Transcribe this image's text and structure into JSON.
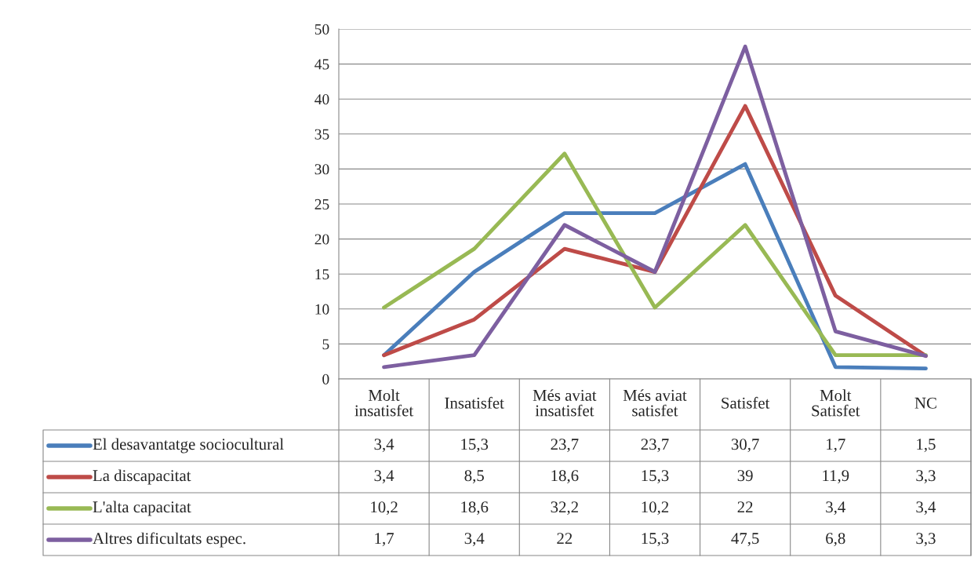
{
  "chart_data": {
    "type": "line",
    "categories": [
      "Molt insatisfet",
      "Insatisfet",
      "Més aviat insatisfet",
      "Més aviat satisfet",
      "Satisfet",
      "Molt Satisfet",
      "NC"
    ],
    "series": [
      {
        "name": "El desavantatge sociocultural",
        "color": "#4a7ebb",
        "values": [
          3.4,
          15.3,
          23.7,
          23.7,
          30.7,
          1.7,
          1.5
        ],
        "value_labels": [
          "3,4",
          "15,3",
          "23,7",
          "23,7",
          "30,7",
          "1,7",
          "1,5"
        ]
      },
      {
        "name": "La discapacitat",
        "color": "#be4b48",
        "values": [
          3.4,
          8.5,
          18.6,
          15.3,
          39,
          11.9,
          3.3
        ],
        "value_labels": [
          "3,4",
          "8,5",
          "18,6",
          "15,3",
          "39",
          "11,9",
          "3,3"
        ]
      },
      {
        "name": "L'alta capacitat",
        "color": "#98b954",
        "values": [
          10.2,
          18.6,
          32.2,
          10.2,
          22,
          3.4,
          3.4
        ],
        "value_labels": [
          "10,2",
          "18,6",
          "32,2",
          "10,2",
          "22",
          "3,4",
          "3,4"
        ]
      },
      {
        "name": "Altres dificultats espec.",
        "color": "#7d5fa0",
        "values": [
          1.7,
          3.4,
          22,
          15.3,
          47.5,
          6.8,
          3.3
        ],
        "value_labels": [
          "1,7",
          "3,4",
          "22",
          "15,3",
          "47,5",
          "6,8",
          "3,3"
        ]
      }
    ],
    "ylim": [
      0,
      50
    ],
    "yticks": [
      0,
      5,
      10,
      15,
      20,
      25,
      30,
      35,
      40,
      45,
      50
    ],
    "grid": "y",
    "legend": "bottom",
    "marker": "none",
    "line_style": "solid"
  }
}
